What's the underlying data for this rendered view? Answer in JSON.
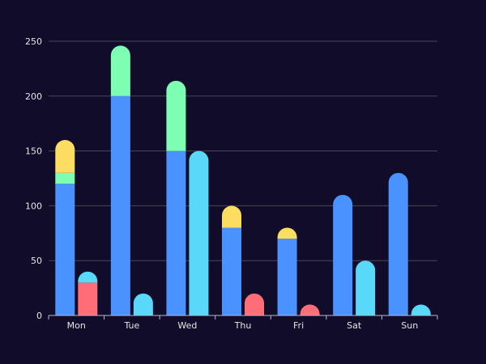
{
  "chart_data": {
    "type": "bar",
    "stacked": true,
    "categories": [
      "Mon",
      "Tue",
      "Wed",
      "Thu",
      "Fri",
      "Sat",
      "Sun"
    ],
    "ylim": [
      0,
      250
    ],
    "yticks": [
      0,
      50,
      100,
      150,
      200,
      250
    ],
    "grid": true,
    "legend": "none",
    "stacks": [
      {
        "id": "stack-a",
        "series": [
          {
            "values": [
              120,
              200,
              150,
              80,
              70,
              110,
              130
            ],
            "color": "#4992ff"
          },
          {
            "values": [
              10,
              46,
              64,
              0,
              0,
              0,
              0
            ],
            "color": "#7cffb2"
          },
          {
            "values": [
              30,
              0,
              0,
              20,
              10,
              0,
              0
            ],
            "color": "#fddd60"
          }
        ]
      },
      {
        "id": "stack-b",
        "series": [
          {
            "values": [
              30,
              0,
              0,
              20,
              10,
              0,
              0
            ],
            "color": "#ff6e76"
          },
          {
            "values": [
              10,
              20,
              150,
              0,
              0,
              50,
              10
            ],
            "color": "#58d9f9"
          }
        ]
      }
    ]
  }
}
